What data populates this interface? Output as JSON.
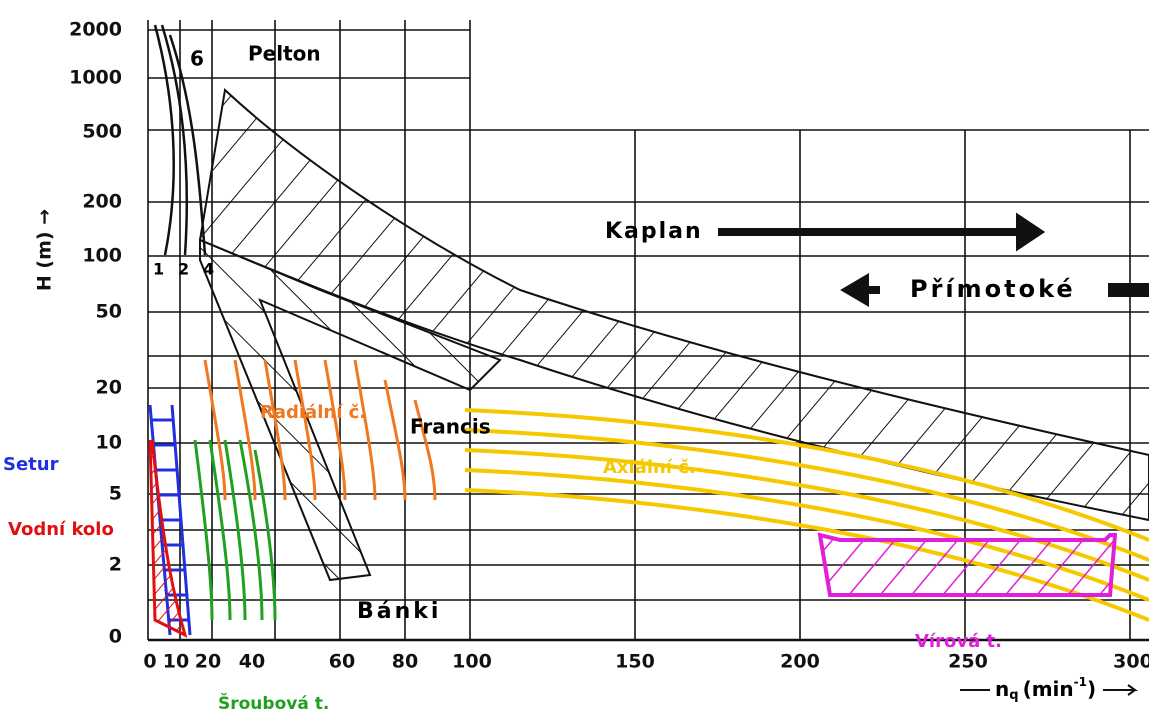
{
  "y_axis": {
    "label": "H (m) →",
    "ticks": [
      "2000",
      "1000",
      "500",
      "200",
      "100",
      "50",
      "20",
      "10",
      "5",
      "2",
      "0"
    ]
  },
  "x_axis": {
    "ticks": [
      "0",
      "10",
      "20",
      "40",
      "60",
      "80",
      "100",
      "150",
      "200",
      "250",
      "300"
    ],
    "label_n": "n",
    "label_q": "q",
    "label_unit": "(min",
    "label_exp": "-1",
    "label_close": ")"
  },
  "regions": {
    "pelton": "Pelton",
    "pelton_number": "6",
    "curve_numbers": [
      "1",
      "2",
      "4"
    ],
    "kaplan": "Kaplan",
    "primotoke": "Přímotoké",
    "radialni": "Radiální č.",
    "francis": "Francis",
    "axialni": "Axiální č.",
    "setur": "Setur",
    "vodni_kolo": "Vodní kolo",
    "sroubova": "Šroubová t.",
    "banki": "Bánki",
    "virova": "Vírová t."
  }
}
